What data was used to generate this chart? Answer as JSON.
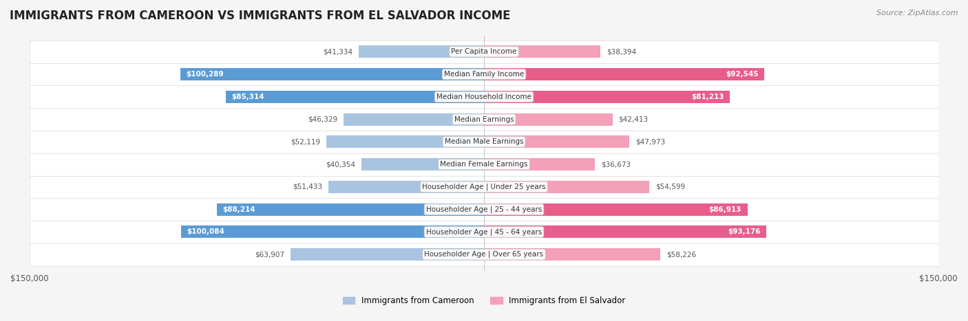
{
  "title": "IMMIGRANTS FROM CAMEROON VS IMMIGRANTS FROM EL SALVADOR INCOME",
  "source": "Source: ZipAtlas.com",
  "categories": [
    "Per Capita Income",
    "Median Family Income",
    "Median Household Income",
    "Median Earnings",
    "Median Male Earnings",
    "Median Female Earnings",
    "Householder Age | Under 25 years",
    "Householder Age | 25 - 44 years",
    "Householder Age | 45 - 64 years",
    "Householder Age | Over 65 years"
  ],
  "cameroon_values": [
    41334,
    100289,
    85314,
    46329,
    52119,
    40354,
    51433,
    88214,
    100084,
    63907
  ],
  "elsalvador_values": [
    38394,
    92545,
    81213,
    42413,
    47973,
    36673,
    54599,
    86913,
    93176,
    58226
  ],
  "max_value": 150000,
  "cameroon_color_light": "#a8c4e0",
  "cameroon_color_dark": "#5b9bd5",
  "elsalvador_color_light": "#f4a0b8",
  "elsalvador_color_dark": "#e85d8a",
  "label_threshold": 80000,
  "background_color": "#f5f5f5",
  "row_bg_color": "#ffffff",
  "bar_height": 0.55,
  "figsize": [
    14.06,
    4.67
  ],
  "dpi": 100
}
